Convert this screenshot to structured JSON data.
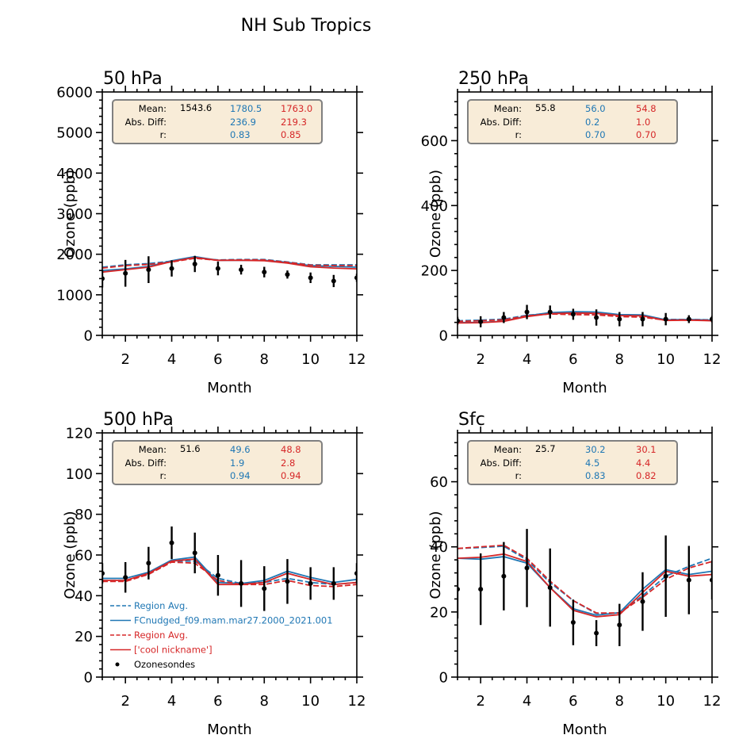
{
  "figure": {
    "suptitle": "NH Sub Tropics",
    "colors": {
      "model_blue": "#1f77b4",
      "model_red": "#d62728",
      "obs": "#000000",
      "stats_box_bg": "#f8ecd8",
      "stats_box_edge": "#808080"
    },
    "stat_labels": [
      "Mean:",
      "Abs. Diff:",
      "r:"
    ],
    "legend": {
      "location": "lower-left of 500 hPa panel",
      "entries": [
        {
          "label": "Region Avg.",
          "color": "#1f77b4",
          "style": "dashed"
        },
        {
          "label": "FCnudged_f09.mam.mar27.2000_2021.001",
          "color": "#1f77b4",
          "style": "solid"
        },
        {
          "label": "Region Avg.",
          "color": "#d62728",
          "style": "dashed"
        },
        {
          "label": "['cool nickname']",
          "color": "#d62728",
          "style": "solid"
        },
        {
          "label": "Ozonesondes",
          "color": "#000000",
          "style": "marker"
        }
      ]
    }
  },
  "chart_data": [
    {
      "type": "line",
      "title": "50 hPa",
      "xlabel": "Month",
      "ylabel": "Ozone (ppb)",
      "xlim": [
        1,
        12
      ],
      "ylim": [
        0,
        6000
      ],
      "xticks": [
        2,
        4,
        6,
        8,
        10,
        12
      ],
      "yticks": [
        0,
        1000,
        2000,
        3000,
        4000,
        5000,
        6000
      ],
      "x": [
        1,
        2,
        3,
        4,
        5,
        6,
        7,
        8,
        9,
        10,
        11,
        12
      ],
      "series": [
        {
          "name": "Region Avg. (FCnudged)",
          "color": "#1f77b4",
          "style": "dashed",
          "values": [
            1680,
            1740,
            1770,
            1830,
            1910,
            1860,
            1870,
            1870,
            1810,
            1740,
            1740,
            1740
          ]
        },
        {
          "name": "FCnudged_f09.mam.mar27.2000_2021.001",
          "color": "#1f77b4",
          "style": "solid",
          "values": [
            1600,
            1640,
            1700,
            1840,
            1940,
            1850,
            1850,
            1850,
            1800,
            1720,
            1700,
            1680
          ]
        },
        {
          "name": "Region Avg. (cool nickname)",
          "color": "#d62728",
          "style": "dashed",
          "values": [
            1660,
            1720,
            1750,
            1810,
            1900,
            1850,
            1860,
            1860,
            1800,
            1730,
            1720,
            1720
          ]
        },
        {
          "name": "['cool nickname']",
          "color": "#d62728",
          "style": "solid",
          "values": [
            1560,
            1620,
            1680,
            1820,
            1920,
            1850,
            1850,
            1840,
            1780,
            1690,
            1660,
            1640
          ]
        }
      ],
      "obs": {
        "name": "Ozonesondes",
        "values": [
          1400,
          1530,
          1620,
          1650,
          1760,
          1650,
          1620,
          1560,
          1500,
          1420,
          1340,
          1420
        ],
        "errors": [
          220,
          330,
          330,
          200,
          200,
          170,
          120,
          130,
          100,
          130,
          150,
          100
        ]
      },
      "stats": {
        "mean": [
          "1543.6",
          "1780.5",
          "1763.0"
        ],
        "abs_diff": [
          "",
          "236.9",
          "219.3"
        ],
        "r": [
          "",
          "0.83",
          "0.85"
        ]
      }
    },
    {
      "type": "line",
      "title": "250 hPa",
      "xlabel": "Month",
      "ylabel": "Ozone (ppb)",
      "xlim": [
        1,
        12
      ],
      "ylim": [
        0,
        750
      ],
      "xticks": [
        2,
        4,
        6,
        8,
        10,
        12
      ],
      "yticks": [
        0,
        200,
        400,
        600
      ],
      "x": [
        1,
        2,
        3,
        4,
        5,
        6,
        7,
        8,
        9,
        10,
        11,
        12
      ],
      "series": [
        {
          "name": "Region Avg. (FCnudged)",
          "color": "#1f77b4",
          "style": "dashed",
          "values": [
            45,
            47,
            50,
            62,
            68,
            66,
            66,
            60,
            58,
            49,
            49,
            48
          ]
        },
        {
          "name": "FCnudged_f09.mam.mar27.2000_2021.001",
          "color": "#1f77b4",
          "style": "solid",
          "values": [
            40,
            40,
            44,
            60,
            70,
            73,
            72,
            64,
            63,
            48,
            49,
            47
          ]
        },
        {
          "name": "Region Avg. (cool nickname)",
          "color": "#d62728",
          "style": "dashed",
          "values": [
            43,
            45,
            48,
            60,
            66,
            64,
            63,
            58,
            56,
            47,
            48,
            46
          ]
        },
        {
          "name": "['cool nickname']",
          "color": "#d62728",
          "style": "solid",
          "values": [
            38,
            39,
            43,
            58,
            67,
            69,
            68,
            61,
            60,
            46,
            47,
            45
          ]
        }
      ],
      "obs": {
        "name": "Ozonesondes",
        "values": [
          45,
          42,
          55,
          72,
          72,
          65,
          55,
          50,
          50,
          50,
          50,
          50
        ],
        "errors": [
          12,
          17,
          17,
          22,
          20,
          17,
          25,
          22,
          22,
          19,
          12,
          10
        ]
      },
      "stats": {
        "mean": [
          "55.8",
          "56.0",
          "54.8"
        ],
        "abs_diff": [
          "",
          "0.2",
          "1.0"
        ],
        "r": [
          "",
          "0.70",
          "0.70"
        ]
      }
    },
    {
      "type": "line",
      "title": "500 hPa",
      "xlabel": "Month",
      "ylabel": "Ozone (ppb)",
      "xlim": [
        1,
        12
      ],
      "ylim": [
        0,
        120
      ],
      "xticks": [
        2,
        4,
        6,
        8,
        10,
        12
      ],
      "yticks": [
        0,
        20,
        40,
        60,
        80,
        100,
        120
      ],
      "x": [
        1,
        2,
        3,
        4,
        5,
        6,
        7,
        8,
        9,
        10,
        11,
        12
      ],
      "series": [
        {
          "name": "Region Avg. (FCnudged)",
          "color": "#1f77b4",
          "style": "dashed",
          "values": [
            47.5,
            47.5,
            50.5,
            57,
            57,
            48.5,
            46,
            46.5,
            48.5,
            46.5,
            45.5,
            46.5
          ]
        },
        {
          "name": "FCnudged_f09.mam.mar27.2000_2021.001",
          "color": "#1f77b4",
          "style": "solid",
          "values": [
            48.5,
            48.5,
            51.5,
            57.5,
            59,
            46.5,
            46,
            47.5,
            52,
            49,
            46.5,
            48
          ]
        },
        {
          "name": "Region Avg. (cool nickname)",
          "color": "#d62728",
          "style": "dashed",
          "values": [
            47,
            47,
            50.5,
            56.5,
            56,
            47.5,
            45.5,
            45.5,
            47.5,
            45,
            44.5,
            45.5
          ]
        },
        {
          "name": "['cool nickname']",
          "color": "#d62728",
          "style": "solid",
          "values": [
            47.5,
            47.5,
            51,
            57,
            58,
            45.5,
            45.5,
            46.5,
            51,
            48,
            45.5,
            46.5
          ]
        }
      ],
      "obs": {
        "name": "Ozonesondes",
        "values": [
          51,
          49,
          56,
          66,
          61,
          50,
          46,
          43.5,
          47,
          46,
          46,
          51
        ],
        "errors": [
          5,
          7.5,
          8,
          8,
          10,
          10,
          11.5,
          11,
          11,
          8,
          8,
          5
        ]
      },
      "stats": {
        "mean": [
          "51.6",
          "49.6",
          "48.8"
        ],
        "abs_diff": [
          "",
          "1.9",
          "2.8"
        ],
        "r": [
          "",
          "0.94",
          "0.94"
        ]
      }
    },
    {
      "type": "line",
      "title": "Sfc",
      "xlabel": "Month",
      "ylabel": "Ozone (ppb)",
      "xlim": [
        1,
        12
      ],
      "ylim": [
        0,
        75
      ],
      "xticks": [
        2,
        4,
        6,
        8,
        10,
        12
      ],
      "yticks": [
        0,
        20,
        40,
        60
      ],
      "x": [
        1,
        2,
        3,
        4,
        5,
        6,
        7,
        8,
        9,
        10,
        11,
        12
      ],
      "series": [
        {
          "name": "Region Avg. (FCnudged)",
          "color": "#1f77b4",
          "style": "dashed",
          "values": [
            39.5,
            39.8,
            40.2,
            36,
            29,
            23.5,
            19.5,
            19.7,
            25,
            31,
            34,
            36.5
          ]
        },
        {
          "name": "FCnudged_f09.mam.mar27.2000_2021.001",
          "color": "#1f77b4",
          "style": "solid",
          "values": [
            36.5,
            36.2,
            37,
            35,
            27.5,
            21,
            19,
            19.8,
            27,
            33,
            31.5,
            32.5
          ]
        },
        {
          "name": "Region Avg. (cool nickname)",
          "color": "#d62728",
          "style": "dashed",
          "values": [
            39.5,
            40,
            40.5,
            36.5,
            29.5,
            23.5,
            19.7,
            19.7,
            24.5,
            30,
            33.5,
            35.5
          ]
        },
        {
          "name": "['cool nickname']",
          "color": "#d62728",
          "style": "solid",
          "values": [
            36.5,
            36.8,
            37.8,
            35.5,
            27.5,
            20.5,
            18.5,
            19.2,
            26,
            32.5,
            31,
            31.5
          ]
        }
      ],
      "obs": {
        "name": "Ozonesondes",
        "values": [
          27,
          27,
          31,
          33.5,
          27.5,
          16.8,
          13.5,
          16,
          23.2,
          31,
          29.8,
          29.8
        ],
        "errors": [
          9,
          11,
          10.5,
          12,
          12,
          7,
          4,
          6.5,
          9,
          12.5,
          10.5,
          6
        ]
      },
      "stats": {
        "mean": [
          "25.7",
          "30.2",
          "30.1"
        ],
        "abs_diff": [
          "",
          "4.5",
          "4.4"
        ],
        "r": [
          "",
          "0.83",
          "0.82"
        ]
      }
    }
  ]
}
